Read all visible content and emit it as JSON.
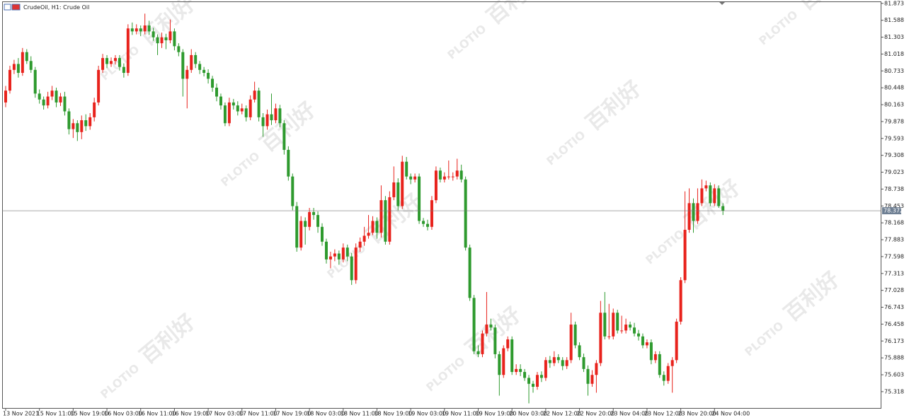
{
  "header": {
    "symbol": "CrudeOil, H1:  Crude Oil"
  },
  "watermark": {
    "brand": "PLOTIO",
    "name": "百利好"
  },
  "chart_data": {
    "type": "candlestick",
    "up_color": "#e8221c",
    "down_color": "#2e9a2e",
    "ylim": [
      75.03,
      81.93
    ],
    "yticks": [
      81.873,
      81.588,
      81.303,
      81.018,
      80.733,
      80.448,
      80.163,
      79.878,
      79.593,
      79.308,
      79.023,
      78.738,
      78.453,
      78.168,
      77.883,
      77.598,
      77.313,
      77.028,
      76.743,
      76.458,
      76.173,
      75.888,
      75.603,
      75.318
    ],
    "current_price": 78.372,
    "x_labels": [
      "13 Nov 2021",
      "15 Nov 11:00",
      "15 Nov 19:00",
      "16 Nov 03:00",
      "16 Nov 11:00",
      "16 Nov 19:00",
      "17 Nov 03:00",
      "17 Nov 11:00",
      "17 Nov 19:00",
      "18 Nov 03:00",
      "18 Nov 11:00",
      "18 Nov 19:00",
      "19 Nov 03:00",
      "19 Nov 11:00",
      "19 Nov 19:00",
      "20 Nov 03:00",
      "22 Nov 12:00",
      "22 Nov 20:00",
      "23 Nov 04:00",
      "23 Nov 12:00",
      "23 Nov 20:00",
      "24 Nov 04:00"
    ],
    "candles": [
      [
        80.2,
        80.48,
        80.12,
        80.4
      ],
      [
        80.4,
        80.82,
        80.35,
        80.75
      ],
      [
        80.75,
        80.92,
        80.68,
        80.85
      ],
      [
        80.85,
        80.95,
        80.62,
        80.7
      ],
      [
        80.7,
        81.12,
        80.65,
        81.05
      ],
      [
        81.05,
        81.1,
        80.85,
        80.9
      ],
      [
        80.9,
        80.98,
        80.7,
        80.75
      ],
      [
        80.75,
        80.8,
        80.28,
        80.35
      ],
      [
        80.35,
        80.42,
        80.18,
        80.25
      ],
      [
        80.25,
        80.3,
        80.08,
        80.15
      ],
      [
        80.15,
        80.38,
        80.1,
        80.3
      ],
      [
        80.3,
        80.48,
        80.24,
        80.4
      ],
      [
        80.4,
        80.45,
        80.12,
        80.2
      ],
      [
        80.2,
        80.36,
        80.14,
        80.3
      ],
      [
        80.3,
        80.38,
        79.98,
        80.05
      ],
      [
        80.05,
        80.1,
        79.66,
        79.75
      ],
      [
        79.75,
        79.92,
        79.6,
        79.85
      ],
      [
        79.85,
        79.9,
        79.55,
        79.7
      ],
      [
        79.7,
        79.98,
        79.58,
        79.9
      ],
      [
        79.9,
        80.0,
        79.72,
        79.8
      ],
      [
        79.8,
        80.02,
        79.74,
        79.95
      ],
      [
        79.95,
        80.28,
        79.88,
        80.2
      ],
      [
        80.2,
        80.82,
        80.15,
        80.75
      ],
      [
        80.75,
        81.02,
        80.7,
        80.95
      ],
      [
        80.95,
        81.0,
        80.78,
        80.85
      ],
      [
        80.85,
        80.96,
        80.8,
        80.9
      ],
      [
        80.9,
        81.0,
        80.84,
        80.95
      ],
      [
        80.95,
        81.0,
        80.74,
        80.8
      ],
      [
        80.8,
        80.86,
        80.62,
        80.7
      ],
      [
        80.7,
        81.52,
        80.65,
        81.45
      ],
      [
        81.45,
        81.55,
        81.34,
        81.4
      ],
      [
        81.4,
        81.52,
        81.35,
        81.45
      ],
      [
        81.45,
        81.5,
        81.32,
        81.4
      ],
      [
        81.4,
        81.7,
        81.35,
        81.5
      ],
      [
        81.5,
        81.58,
        81.34,
        81.4
      ],
      [
        81.4,
        81.46,
        81.24,
        81.3
      ],
      [
        81.3,
        81.35,
        81.0,
        81.2
      ],
      [
        81.2,
        81.38,
        81.12,
        81.3
      ],
      [
        81.3,
        81.36,
        81.1,
        81.25
      ],
      [
        81.25,
        81.6,
        81.2,
        81.4
      ],
      [
        81.4,
        81.45,
        81.08,
        81.15
      ],
      [
        81.15,
        81.2,
        80.98,
        81.05
      ],
      [
        81.05,
        81.1,
        80.3,
        80.6
      ],
      [
        80.6,
        80.82,
        80.1,
        80.75
      ],
      [
        80.75,
        81.1,
        80.7,
        81.0
      ],
      [
        81.0,
        81.05,
        80.78,
        80.85
      ],
      [
        80.85,
        80.9,
        80.68,
        80.75
      ],
      [
        80.75,
        80.8,
        80.64,
        80.7
      ],
      [
        80.7,
        80.76,
        80.52,
        80.6
      ],
      [
        80.6,
        80.65,
        80.38,
        80.45
      ],
      [
        80.45,
        80.52,
        80.22,
        80.3
      ],
      [
        80.3,
        80.35,
        80.08,
        80.15
      ],
      [
        80.15,
        80.2,
        79.8,
        79.85
      ],
      [
        79.85,
        80.28,
        79.8,
        80.2
      ],
      [
        80.2,
        80.26,
        80.08,
        80.15
      ],
      [
        80.15,
        80.22,
        79.98,
        80.05
      ],
      [
        80.05,
        80.18,
        80.0,
        80.1
      ],
      [
        80.1,
        80.15,
        79.88,
        79.95
      ],
      [
        79.95,
        80.32,
        79.9,
        80.25
      ],
      [
        80.25,
        80.55,
        80.2,
        80.4
      ],
      [
        80.4,
        80.45,
        79.88,
        79.95
      ],
      [
        79.95,
        80.02,
        79.62,
        79.8
      ],
      [
        79.8,
        80.08,
        79.74,
        80.0
      ],
      [
        80.0,
        80.35,
        79.82,
        79.9
      ],
      [
        79.9,
        80.18,
        79.85,
        80.1
      ],
      [
        80.1,
        80.16,
        79.78,
        79.85
      ],
      [
        79.85,
        79.9,
        79.32,
        79.4
      ],
      [
        79.4,
        79.46,
        78.88,
        78.95
      ],
      [
        78.95,
        79.0,
        78.38,
        78.45
      ],
      [
        78.45,
        78.52,
        77.68,
        77.75
      ],
      [
        77.75,
        78.28,
        77.7,
        78.2
      ],
      [
        78.2,
        78.26,
        77.8,
        78.1
      ],
      [
        78.1,
        78.42,
        78.04,
        78.35
      ],
      [
        78.35,
        78.42,
        78.22,
        78.3
      ],
      [
        78.3,
        78.36,
        78.0,
        78.1
      ],
      [
        78.1,
        78.16,
        77.78,
        77.85
      ],
      [
        77.85,
        77.9,
        77.48,
        77.55
      ],
      [
        77.55,
        77.68,
        77.4,
        77.6
      ],
      [
        77.6,
        77.72,
        77.52,
        77.65
      ],
      [
        77.65,
        77.7,
        77.46,
        77.55
      ],
      [
        77.55,
        77.82,
        77.5,
        77.75
      ],
      [
        77.75,
        77.8,
        77.52,
        77.6
      ],
      [
        77.6,
        77.66,
        77.12,
        77.2
      ],
      [
        77.2,
        77.82,
        77.14,
        77.75
      ],
      [
        77.75,
        77.92,
        77.68,
        77.85
      ],
      [
        77.85,
        78.1,
        77.78,
        77.95
      ],
      [
        77.95,
        78.3,
        77.9,
        78.0
      ],
      [
        78.0,
        78.28,
        77.96,
        78.2
      ],
      [
        78.2,
        78.26,
        77.9,
        78.0
      ],
      [
        78.0,
        78.8,
        77.92,
        78.55
      ],
      [
        78.55,
        78.62,
        77.8,
        77.85
      ],
      [
        77.85,
        78.7,
        77.8,
        78.6
      ],
      [
        78.6,
        79.12,
        78.55,
        78.85
      ],
      [
        78.85,
        78.92,
        78.38,
        78.45
      ],
      [
        78.45,
        79.3,
        78.4,
        79.2
      ],
      [
        79.2,
        79.28,
        78.9,
        78.95
      ],
      [
        78.95,
        79.0,
        78.82,
        78.9
      ],
      [
        78.9,
        79.0,
        78.85,
        78.95
      ],
      [
        78.95,
        79.0,
        78.15,
        78.2
      ],
      [
        78.2,
        78.25,
        78.1,
        78.15
      ],
      [
        78.15,
        78.22,
        78.04,
        78.1
      ],
      [
        78.1,
        78.62,
        78.05,
        78.55
      ],
      [
        78.55,
        79.12,
        78.5,
        79.05
      ],
      [
        79.05,
        79.1,
        78.85,
        78.9
      ],
      [
        78.9,
        79.02,
        78.85,
        78.95
      ],
      [
        78.95,
        79.22,
        78.9,
        78.95
      ],
      [
        78.95,
        79.02,
        78.88,
        78.95
      ],
      [
        78.95,
        79.25,
        78.9,
        79.05
      ],
      [
        79.05,
        79.15,
        78.85,
        78.9
      ],
      [
        78.9,
        78.95,
        77.7,
        77.75
      ],
      [
        77.75,
        77.8,
        76.85,
        76.9
      ],
      [
        76.9,
        76.95,
        75.95,
        76.0
      ],
      [
        76.0,
        76.1,
        75.9,
        75.95
      ],
      [
        75.95,
        76.35,
        75.9,
        76.3
      ],
      [
        76.3,
        77.0,
        76.25,
        76.45
      ],
      [
        76.45,
        76.55,
        76.35,
        76.4
      ],
      [
        76.4,
        76.45,
        75.88,
        75.95
      ],
      [
        75.95,
        76.0,
        75.25,
        75.6
      ],
      [
        75.6,
        76.1,
        75.55,
        76.05
      ],
      [
        76.05,
        76.25,
        76.0,
        76.2
      ],
      [
        76.2,
        76.25,
        75.6,
        75.65
      ],
      [
        75.65,
        75.78,
        75.6,
        75.7
      ],
      [
        75.7,
        75.78,
        75.58,
        75.65
      ],
      [
        75.65,
        75.7,
        75.5,
        75.55
      ],
      [
        75.55,
        75.6,
        75.12,
        75.45
      ],
      [
        75.45,
        75.5,
        75.3,
        75.4
      ],
      [
        75.4,
        75.65,
        75.35,
        75.6
      ],
      [
        75.6,
        75.66,
        75.48,
        75.55
      ],
      [
        75.55,
        75.9,
        75.5,
        75.85
      ],
      [
        75.85,
        75.92,
        75.72,
        75.8
      ],
      [
        75.8,
        76.0,
        75.75,
        75.9
      ],
      [
        75.9,
        75.95,
        75.8,
        75.85
      ],
      [
        75.85,
        75.9,
        75.68,
        75.75
      ],
      [
        75.75,
        75.9,
        75.7,
        75.85
      ],
      [
        75.85,
        76.65,
        75.8,
        76.45
      ],
      [
        76.45,
        76.5,
        76.05,
        76.1
      ],
      [
        76.1,
        76.15,
        75.85,
        75.9
      ],
      [
        75.9,
        75.96,
        75.65,
        75.7
      ],
      [
        75.7,
        75.76,
        75.25,
        75.45
      ],
      [
        75.45,
        75.68,
        75.4,
        75.6
      ],
      [
        75.6,
        75.85,
        75.3,
        75.8
      ],
      [
        75.8,
        76.85,
        75.75,
        76.65
      ],
      [
        76.65,
        77.0,
        76.2,
        76.25
      ],
      [
        76.25,
        76.8,
        76.2,
        76.25
      ],
      [
        76.25,
        76.72,
        76.2,
        76.65
      ],
      [
        76.65,
        76.7,
        76.3,
        76.35
      ],
      [
        76.35,
        76.6,
        76.3,
        76.35
      ],
      [
        76.35,
        76.55,
        76.3,
        76.45
      ],
      [
        76.45,
        76.5,
        76.35,
        76.4
      ],
      [
        76.4,
        76.48,
        76.25,
        76.3
      ],
      [
        76.3,
        76.36,
        76.18,
        76.25
      ],
      [
        76.25,
        76.3,
        76.05,
        76.1
      ],
      [
        76.1,
        76.2,
        76.05,
        76.15
      ],
      [
        76.15,
        76.2,
        75.78,
        75.85
      ],
      [
        75.85,
        76.0,
        75.8,
        75.95
      ],
      [
        75.95,
        76.0,
        75.55,
        75.6
      ],
      [
        75.6,
        75.66,
        75.42,
        75.5
      ],
      [
        75.5,
        75.8,
        75.45,
        75.75
      ],
      [
        75.75,
        75.9,
        75.3,
        75.85
      ],
      [
        75.85,
        76.55,
        75.8,
        76.5
      ],
      [
        76.5,
        77.25,
        76.45,
        77.2
      ],
      [
        77.2,
        78.7,
        77.15,
        78.05
      ],
      [
        78.05,
        78.75,
        78.0,
        78.5
      ],
      [
        78.5,
        78.58,
        78.0,
        78.2
      ],
      [
        78.2,
        78.75,
        78.15,
        78.5
      ],
      [
        78.5,
        78.9,
        78.45,
        78.75
      ],
      [
        78.75,
        78.88,
        78.7,
        78.8
      ],
      [
        78.8,
        78.85,
        78.45,
        78.5
      ],
      [
        78.5,
        78.82,
        78.45,
        78.75
      ],
      [
        78.75,
        78.8,
        78.42,
        78.45
      ],
      [
        78.45,
        78.5,
        78.3,
        78.372
      ]
    ]
  }
}
